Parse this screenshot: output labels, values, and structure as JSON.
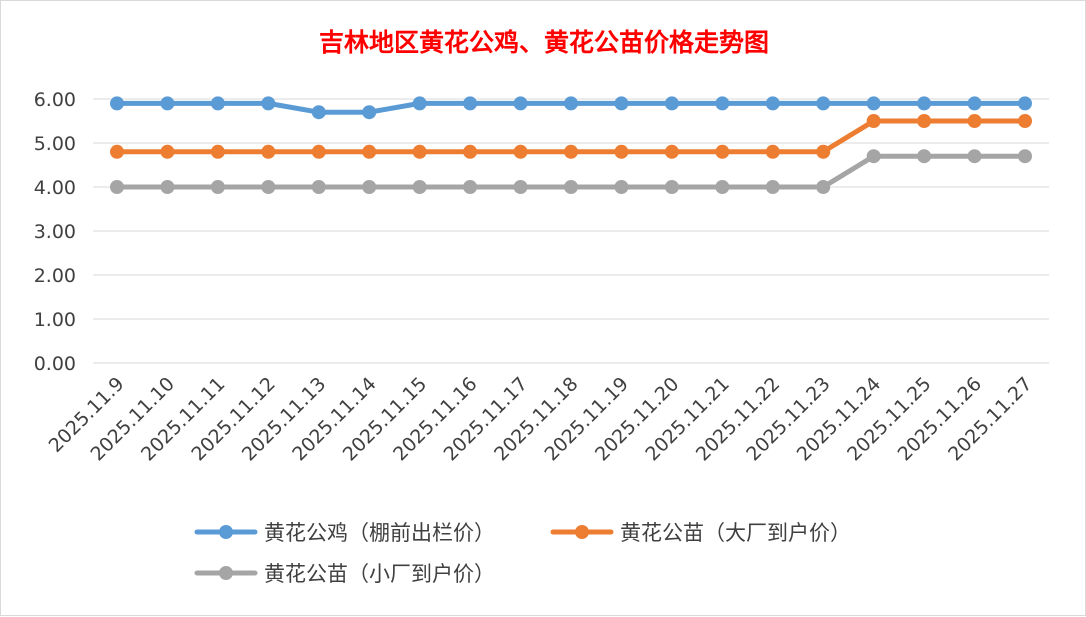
{
  "chart_data": {
    "type": "line",
    "title": "吉林地区黄花公鸡、黄花公苗价格走势图",
    "xlabel": "",
    "ylabel": "",
    "ylim": [
      0,
      6
    ],
    "yticks": [
      "0.00",
      "1.00",
      "2.00",
      "3.00",
      "4.00",
      "5.00",
      "6.00"
    ],
    "grid": "horizontal",
    "legend_position": "bottom",
    "categories": [
      "2025.11.9",
      "2025.11.10",
      "2025.11.11",
      "2025.11.12",
      "2025.11.13",
      "2025.11.14",
      "2025.11.15",
      "2025.11.16",
      "2025.11.17",
      "2025.11.18",
      "2025.11.19",
      "2025.11.20",
      "2025.11.21",
      "2025.11.22",
      "2025.11.23",
      "2025.11.24",
      "2025.11.25",
      "2025.11.26",
      "2025.11.27"
    ],
    "series": [
      {
        "name": "黄花公鸡（棚前出栏价）",
        "color": "#5b9bd5",
        "values": [
          5.9,
          5.9,
          5.9,
          5.9,
          5.7,
          5.7,
          5.9,
          5.9,
          5.9,
          5.9,
          5.9,
          5.9,
          5.9,
          5.9,
          5.9,
          5.9,
          5.9,
          5.9,
          5.9
        ]
      },
      {
        "name": "黄花公苗（大厂到户价）",
        "color": "#ed7d31",
        "values": [
          4.8,
          4.8,
          4.8,
          4.8,
          4.8,
          4.8,
          4.8,
          4.8,
          4.8,
          4.8,
          4.8,
          4.8,
          4.8,
          4.8,
          4.8,
          5.5,
          5.5,
          5.5,
          5.5
        ]
      },
      {
        "name": "黄花公苗（小厂到户价）",
        "color": "#a5a5a5",
        "values": [
          4.0,
          4.0,
          4.0,
          4.0,
          4.0,
          4.0,
          4.0,
          4.0,
          4.0,
          4.0,
          4.0,
          4.0,
          4.0,
          4.0,
          4.0,
          4.7,
          4.7,
          4.7,
          4.7
        ]
      }
    ]
  }
}
